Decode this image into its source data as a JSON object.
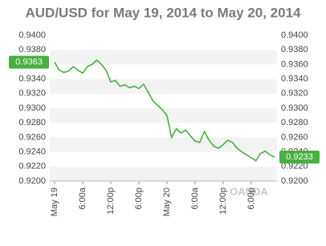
{
  "chart_data": {
    "type": "line",
    "title": "AUD/USD for May 19, 2014 to May 20, 2014",
    "watermark": "OANDA",
    "color": "#47b03f",
    "categories": [
      "May 19",
      null,
      null,
      null,
      null,
      null,
      "6:00a",
      null,
      null,
      null,
      null,
      null,
      "12:00p",
      null,
      null,
      null,
      null,
      null,
      "6:00p",
      null,
      null,
      null,
      null,
      null,
      "May 20",
      null,
      null,
      null,
      null,
      null,
      "6:00a",
      null,
      null,
      null,
      null,
      null,
      "12:00p",
      null,
      null,
      null,
      null,
      null,
      "6:00p",
      null,
      null,
      null,
      null,
      null
    ],
    "values": [
      0.9363,
      0.9352,
      0.9349,
      0.9351,
      0.9357,
      0.9352,
      0.9348,
      0.9357,
      0.936,
      0.9366,
      0.936,
      0.9352,
      0.9336,
      0.9338,
      0.933,
      0.9332,
      0.9328,
      0.933,
      0.9327,
      0.9333,
      0.9322,
      0.931,
      0.9304,
      0.9298,
      0.929,
      0.926,
      0.9272,
      0.9266,
      0.927,
      0.9262,
      0.9255,
      0.9253,
      0.9268,
      0.9256,
      0.9248,
      0.9245,
      0.925,
      0.9256,
      0.9253,
      0.9245,
      0.924,
      0.9236,
      0.9232,
      0.9228,
      0.9238,
      0.9241,
      0.9236,
      0.9233
    ],
    "ylim": [
      0.92,
      0.94
    ],
    "yticks": [
      {
        "value": 0.92,
        "label": "0.9200"
      },
      {
        "value": 0.922,
        "label": "0.9220"
      },
      {
        "value": 0.924,
        "label": "0.9240"
      },
      {
        "value": 0.926,
        "label": "0.9260"
      },
      {
        "value": 0.928,
        "label": "0.9280"
      },
      {
        "value": 0.93,
        "label": "0.9300"
      },
      {
        "value": 0.932,
        "label": "0.9320"
      },
      {
        "value": 0.934,
        "label": "0.9340"
      },
      {
        "value": 0.936,
        "label": "0.9360"
      },
      {
        "value": 0.938,
        "label": "0.9380"
      },
      {
        "value": 0.94,
        "label": "0.9400"
      }
    ],
    "grid": true
  }
}
